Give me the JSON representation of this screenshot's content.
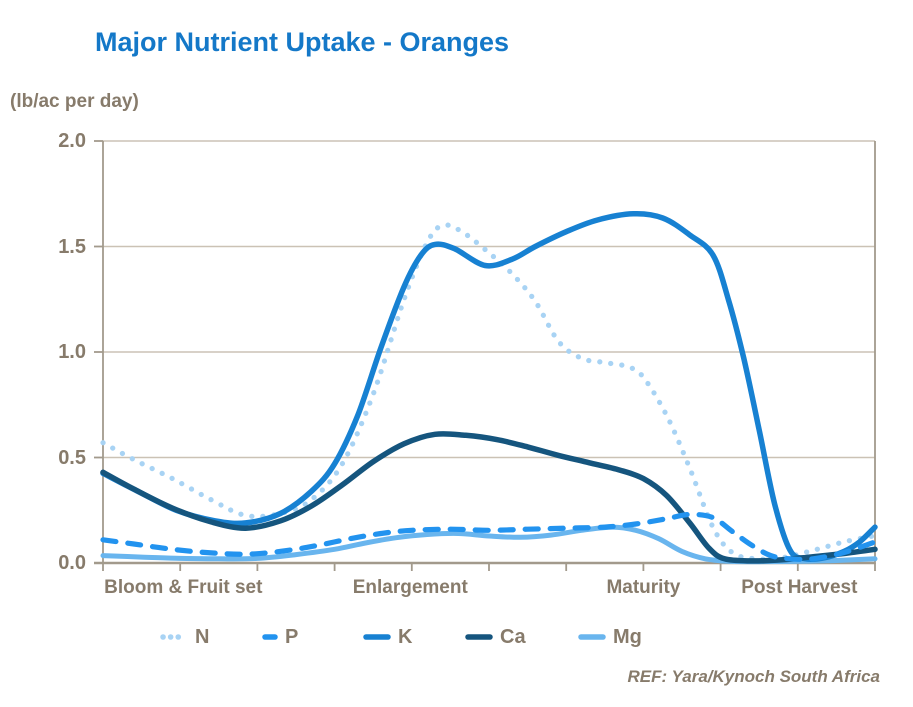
{
  "title": "Major Nutrient Uptake - Oranges",
  "unit_label": "(lb/ac per day)",
  "reference": "REF: Yara/Kynoch South Africa",
  "colors": {
    "title": "#1478c8",
    "text": "#877b6b",
    "grid": "#cbc2b5",
    "axis": "#a29a8c",
    "N": "#a8d3f4",
    "P": "#2293ef",
    "K": "#1781d2",
    "Ca": "#15557e",
    "Mg": "#69b5ee"
  },
  "chart_data": {
    "type": "line",
    "title": "Major Nutrient Uptake - Oranges",
    "ylabel": "(lb/ac per day)",
    "xlabel": "",
    "ylim": [
      0,
      2
    ],
    "yticks": [
      {
        "value": 0.0,
        "label": "0.0"
      },
      {
        "value": 0.5,
        "label": "0.5"
      },
      {
        "value": 1.0,
        "label": "1.0"
      },
      {
        "value": 1.5,
        "label": "1.5"
      },
      {
        "value": 2.0,
        "label": "2.0"
      }
    ],
    "x_range": [
      0,
      10
    ],
    "x_tick_count": 11,
    "grid": true,
    "legend_position": "bottom",
    "stages": [
      {
        "label": "Bloom & Fruit set",
        "t": 1.04
      },
      {
        "label": "Enlargement",
        "t": 3.98
      },
      {
        "label": "Maturity",
        "t": 7.0
      },
      {
        "label": "Post Harvest",
        "t": 9.02
      }
    ],
    "series": [
      {
        "name": "N",
        "style": "dotted",
        "color": "#a8d3f4",
        "width": 5.2,
        "points": [
          [
            0,
            0.57
          ],
          [
            0.4,
            0.49
          ],
          [
            0.9,
            0.4
          ],
          [
            1.4,
            0.3
          ],
          [
            1.85,
            0.225
          ],
          [
            2.3,
            0.235
          ],
          [
            2.7,
            0.3
          ],
          [
            3.1,
            0.47
          ],
          [
            3.5,
            0.8
          ],
          [
            3.9,
            1.25
          ],
          [
            4.2,
            1.52
          ],
          [
            4.4,
            1.6
          ],
          [
            4.65,
            1.57
          ],
          [
            5.0,
            1.47
          ],
          [
            5.3,
            1.37
          ],
          [
            5.6,
            1.24
          ],
          [
            5.9,
            1.05
          ],
          [
            6.2,
            0.97
          ],
          [
            6.5,
            0.95
          ],
          [
            6.8,
            0.93
          ],
          [
            7.0,
            0.88
          ],
          [
            7.3,
            0.7
          ],
          [
            7.6,
            0.45
          ],
          [
            7.9,
            0.17
          ],
          [
            8.15,
            0.05
          ],
          [
            8.45,
            0.02
          ],
          [
            8.8,
            0.025
          ],
          [
            9.2,
            0.06
          ],
          [
            9.6,
            0.1
          ],
          [
            10,
            0.13
          ]
        ]
      },
      {
        "name": "P",
        "style": "dashed",
        "color": "#2293ef",
        "width": 5.2,
        "points": [
          [
            0,
            0.11
          ],
          [
            0.4,
            0.09
          ],
          [
            0.9,
            0.065
          ],
          [
            1.4,
            0.048
          ],
          [
            1.9,
            0.042
          ],
          [
            2.4,
            0.06
          ],
          [
            2.8,
            0.085
          ],
          [
            3.2,
            0.115
          ],
          [
            3.6,
            0.14
          ],
          [
            4.0,
            0.155
          ],
          [
            4.5,
            0.16
          ],
          [
            5.0,
            0.155
          ],
          [
            5.5,
            0.16
          ],
          [
            6.0,
            0.165
          ],
          [
            6.5,
            0.17
          ],
          [
            6.9,
            0.185
          ],
          [
            7.3,
            0.21
          ],
          [
            7.6,
            0.23
          ],
          [
            7.9,
            0.215
          ],
          [
            8.15,
            0.15
          ],
          [
            8.4,
            0.085
          ],
          [
            8.65,
            0.035
          ],
          [
            8.9,
            0.02
          ],
          [
            9.2,
            0.02
          ],
          [
            9.6,
            0.05
          ],
          [
            10,
            0.1
          ]
        ]
      },
      {
        "name": "K",
        "style": "solid",
        "color": "#1781d2",
        "width": 5.5,
        "points": [
          [
            0,
            0.425
          ],
          [
            0.45,
            0.34
          ],
          [
            0.95,
            0.25
          ],
          [
            1.45,
            0.2
          ],
          [
            1.85,
            0.19
          ],
          [
            2.3,
            0.235
          ],
          [
            2.7,
            0.34
          ],
          [
            3.0,
            0.47
          ],
          [
            3.3,
            0.7
          ],
          [
            3.6,
            1.02
          ],
          [
            3.9,
            1.31
          ],
          [
            4.12,
            1.46
          ],
          [
            4.3,
            1.51
          ],
          [
            4.55,
            1.49
          ],
          [
            4.95,
            1.41
          ],
          [
            5.3,
            1.44
          ],
          [
            5.6,
            1.5
          ],
          [
            6.0,
            1.57
          ],
          [
            6.4,
            1.625
          ],
          [
            6.87,
            1.655
          ],
          [
            7.25,
            1.635
          ],
          [
            7.6,
            1.555
          ],
          [
            7.9,
            1.46
          ],
          [
            8.1,
            1.25
          ],
          [
            8.3,
            0.97
          ],
          [
            8.5,
            0.63
          ],
          [
            8.7,
            0.28
          ],
          [
            8.9,
            0.06
          ],
          [
            9.1,
            0.02
          ],
          [
            9.35,
            0.025
          ],
          [
            9.6,
            0.055
          ],
          [
            9.8,
            0.1
          ],
          [
            10,
            0.17
          ]
        ]
      },
      {
        "name": "Ca",
        "style": "solid",
        "color": "#15557e",
        "width": 5.5,
        "points": [
          [
            0,
            0.43
          ],
          [
            0.4,
            0.35
          ],
          [
            0.9,
            0.26
          ],
          [
            1.4,
            0.195
          ],
          [
            1.85,
            0.165
          ],
          [
            2.3,
            0.2
          ],
          [
            2.7,
            0.27
          ],
          [
            3.1,
            0.37
          ],
          [
            3.5,
            0.48
          ],
          [
            3.9,
            0.565
          ],
          [
            4.3,
            0.61
          ],
          [
            4.7,
            0.605
          ],
          [
            5.1,
            0.585
          ],
          [
            5.5,
            0.55
          ],
          [
            5.9,
            0.51
          ],
          [
            6.3,
            0.475
          ],
          [
            6.7,
            0.44
          ],
          [
            7.0,
            0.4
          ],
          [
            7.3,
            0.32
          ],
          [
            7.6,
            0.19
          ],
          [
            7.85,
            0.07
          ],
          [
            8.05,
            0.02
          ],
          [
            8.4,
            0.01
          ],
          [
            8.8,
            0.015
          ],
          [
            9.2,
            0.03
          ],
          [
            9.6,
            0.045
          ],
          [
            10,
            0.065
          ]
        ]
      },
      {
        "name": "Mg",
        "style": "solid",
        "color": "#69b5ee",
        "width": 5.0,
        "points": [
          [
            0,
            0.035
          ],
          [
            0.5,
            0.028
          ],
          [
            1.0,
            0.022
          ],
          [
            1.5,
            0.02
          ],
          [
            2.0,
            0.022
          ],
          [
            2.5,
            0.04
          ],
          [
            3.0,
            0.065
          ],
          [
            3.4,
            0.095
          ],
          [
            3.8,
            0.12
          ],
          [
            4.2,
            0.135
          ],
          [
            4.6,
            0.14
          ],
          [
            5.0,
            0.128
          ],
          [
            5.4,
            0.122
          ],
          [
            5.8,
            0.132
          ],
          [
            6.2,
            0.155
          ],
          [
            6.6,
            0.17
          ],
          [
            6.9,
            0.155
          ],
          [
            7.2,
            0.115
          ],
          [
            7.5,
            0.055
          ],
          [
            7.8,
            0.02
          ],
          [
            8.1,
            0.008
          ],
          [
            8.5,
            0.006
          ],
          [
            9.0,
            0.008
          ],
          [
            9.5,
            0.012
          ],
          [
            10,
            0.02
          ]
        ]
      }
    ]
  }
}
